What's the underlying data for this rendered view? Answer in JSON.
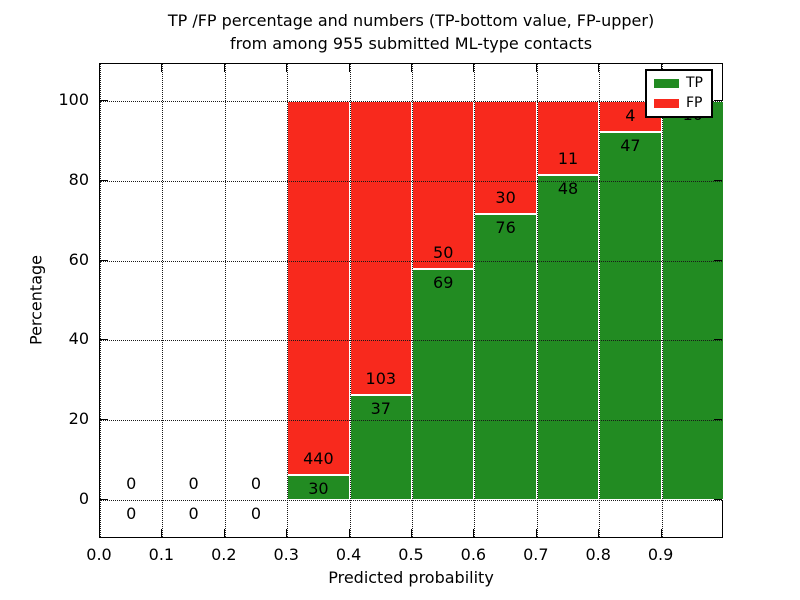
{
  "chart_data": {
    "type": "bar",
    "stacked": true,
    "title": "TP /FP percentage and numbers (TP-bottom value, FP-upper) from among 955 submitted ML-type contacts",
    "title_lines": [
      "TP /FP percentage and numbers (TP-bottom value, FP-upper)",
      "from among 955 submitted ML-type contacts"
    ],
    "xlabel": "Predicted probability",
    "ylabel": "Percentage",
    "x_tick_labels": [
      "0.0",
      "0.1",
      "0.2",
      "0.3",
      "0.4",
      "0.5",
      "0.6",
      "0.7",
      "0.8",
      "0.9"
    ],
    "x_tick_values": [
      0.0,
      0.1,
      0.2,
      0.3,
      0.4,
      0.5,
      0.6,
      0.7,
      0.8,
      0.9
    ],
    "y_tick_labels": [
      "0",
      "20",
      "40",
      "60",
      "80",
      "100"
    ],
    "y_tick_values": [
      0,
      20,
      40,
      60,
      80,
      100
    ],
    "xlim": [
      0.0,
      1.0
    ],
    "ylim": [
      -9.8,
      109.3
    ],
    "grid": true,
    "grid_style": "dotted",
    "bin_width": 0.1,
    "categories": [
      "0.0-0.1",
      "0.1-0.2",
      "0.2-0.3",
      "0.3-0.4",
      "0.4-0.5",
      "0.5-0.6",
      "0.6-0.7",
      "0.7-0.8",
      "0.8-0.9",
      "0.9-1.0"
    ],
    "series": [
      {
        "name": "TP",
        "color": "#228b22",
        "values": [
          0,
          0,
          0,
          30,
          37,
          69,
          76,
          48,
          47,
          10
        ]
      },
      {
        "name": "FP",
        "color": "#f8291d",
        "values": [
          0,
          0,
          0,
          440,
          103,
          50,
          30,
          11,
          4,
          0
        ]
      }
    ],
    "tp_percent": [
      0,
      0,
      0,
      6.38,
      26.43,
      57.98,
      71.7,
      81.36,
      92.16,
      100
    ],
    "bar_height_percent": 100,
    "total_contacts": 955,
    "legend": {
      "position": "upper right",
      "entries": [
        {
          "label": "TP",
          "color": "#228b22"
        },
        {
          "label": "FP",
          "color": "#f8291d"
        }
      ]
    }
  }
}
